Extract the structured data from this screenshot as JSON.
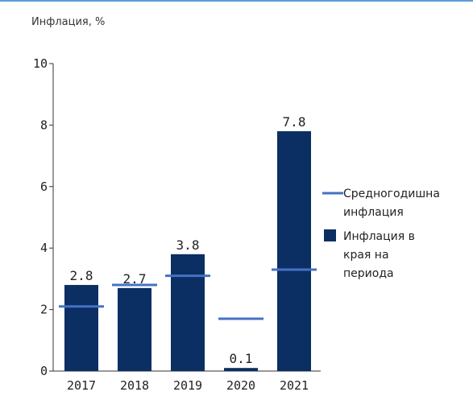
{
  "chart_data": {
    "type": "bar",
    "title": "Инфлация, %",
    "categories": [
      "2017",
      "2018",
      "2019",
      "2020",
      "2021"
    ],
    "series": [
      {
        "name": "Инфлация в края на периода",
        "type": "bar",
        "color": "#0b2e63",
        "values": [
          2.8,
          2.7,
          3.8,
          0.1,
          7.8
        ],
        "labels": [
          "2.8",
          "2.7",
          "3.8",
          "0.1",
          "7.8"
        ]
      },
      {
        "name": "Средногодишна инфлация",
        "type": "marker-line",
        "color": "#4472c4",
        "values": [
          2.1,
          2.8,
          3.1,
          1.7,
          3.3
        ]
      }
    ],
    "ylim": [
      0,
      10
    ],
    "yticks": [
      "0",
      "2",
      "4",
      "6",
      "8",
      "10"
    ],
    "xlabel": "",
    "ylabel": "",
    "grid": false,
    "legend": {
      "position": "right",
      "entries": [
        {
          "lines": [
            "Средногодишна",
            "инфлация"
          ],
          "symbol": "line",
          "color": "#4472c4"
        },
        {
          "lines": [
            "Инфлация в",
            "края на",
            "периода"
          ],
          "symbol": "square",
          "color": "#0b2e63"
        }
      ]
    }
  }
}
